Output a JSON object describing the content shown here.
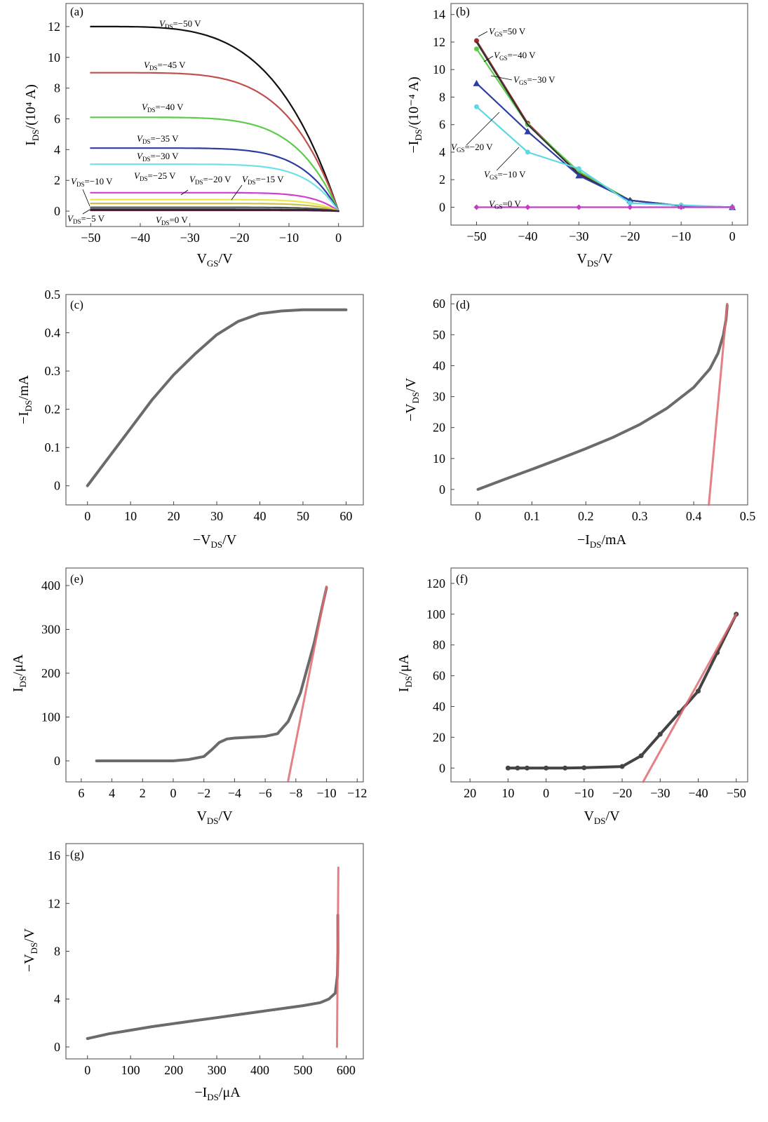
{
  "chart_data": [
    {
      "panel": "(a)",
      "type": "line",
      "xlabel": {
        "main": "V",
        "sub": "GS",
        "tail": "/V"
      },
      "ylabel": {
        "main": "I",
        "sub": "DS",
        "tail": "/(10⁴ A)"
      },
      "xlim": [
        -55,
        5
      ],
      "ylim": [
        -1,
        13.5
      ],
      "xticks": [
        -50,
        -40,
        -30,
        -20,
        -10,
        0
      ],
      "xtick_labels": [
        "−50",
        "−40",
        "−30",
        "−20",
        "−10",
        "0"
      ],
      "yticks": [
        0,
        2,
        4,
        6,
        8,
        10,
        12
      ],
      "ytick_labels": [
        "0",
        "2",
        "4",
        "6",
        "8",
        "10",
        "12"
      ],
      "series": [
        {
          "name": "VDS=−50 V",
          "color": "#111111",
          "plateau": 12.0,
          "k": 4
        },
        {
          "name": "VDS=−45 V",
          "color": "#c0504d",
          "plateau": 9.0,
          "k": 5
        },
        {
          "name": "VDS=−40 V",
          "color": "#5ccc4a",
          "plateau": 6.1,
          "k": 6
        },
        {
          "name": "VDS=−35 V",
          "color": "#2f3ca0",
          "plateau": 4.1,
          "k": 7
        },
        {
          "name": "VDS=−30 V",
          "color": "#6ee0e8",
          "plateau": 3.05,
          "k": 8
        },
        {
          "name": "VDS=−25 V",
          "color": "#d040d0",
          "plateau": 1.2,
          "k": 10
        },
        {
          "name": "VDS=−20 V",
          "color": "#ece845",
          "plateau": 0.75,
          "k": 10
        },
        {
          "name": "VDS=−15 V",
          "color": "#c8c24a",
          "plateau": 0.5,
          "k": 10
        },
        {
          "name": "VDS=−10 V",
          "color": "#555555",
          "plateau": 0.25,
          "k": 10
        },
        {
          "name": "VDS=−5 V",
          "color": "#2a2a2a",
          "plateau": 0.12,
          "k": 10
        },
        {
          "name": "VDS=0 V",
          "color": "#4a1a3a",
          "plateau": 0.05,
          "k": 10
        }
      ],
      "annotations": [
        {
          "pre": "V",
          "sub": "DS",
          "post": "=−50 V"
        },
        {
          "pre": "V",
          "sub": "DS",
          "post": "=−45 V"
        },
        {
          "pre": "V",
          "sub": "DS",
          "post": "=−40 V"
        },
        {
          "pre": "V",
          "sub": "DS",
          "post": "=−35 V"
        },
        {
          "pre": "V",
          "sub": "DS",
          "post": "=−30 V"
        },
        {
          "pre": "V",
          "sub": "DS",
          "post": "=−25 V"
        },
        {
          "pre": "V",
          "sub": "DS",
          "post": "=−20 V"
        },
        {
          "pre": "V",
          "sub": "DS",
          "post": "=−15 V"
        },
        {
          "pre": "V",
          "sub": "DS",
          "post": "=−10 V"
        },
        {
          "pre": "V",
          "sub": "DS",
          "post": "=−5 V"
        },
        {
          "pre": "V",
          "sub": "DS",
          "post": "=0 V"
        }
      ]
    },
    {
      "panel": "(b)",
      "type": "line",
      "xlabel": {
        "main": "V",
        "sub": "DS",
        "tail": "/V"
      },
      "ylabel": {
        "main": "−I",
        "sub": "DS",
        "tail": "/(10⁻⁴ A)"
      },
      "xlim": [
        -55,
        3
      ],
      "ylim": [
        -1.3,
        14.8
      ],
      "xticks": [
        -50,
        -40,
        -30,
        -20,
        -10,
        0
      ],
      "xtick_labels": [
        "−50",
        "−40",
        "−30",
        "−20",
        "−10",
        "0"
      ],
      "yticks": [
        0,
        2,
        4,
        6,
        8,
        10,
        12,
        14
      ],
      "ytick_labels": [
        "0",
        "2",
        "4",
        "6",
        "8",
        "10",
        "12",
        "14"
      ],
      "series": [
        {
          "name": "VGS=50 V",
          "color": "#a02828",
          "marker": "circle",
          "x": [
            -50,
            -40,
            -30,
            -20,
            -10,
            0
          ],
          "y": [
            12.1,
            6.1,
            2.5,
            0.5,
            0.1,
            0
          ]
        },
        {
          "name": "VGS=−40 V",
          "color": "#5ccc4a",
          "marker": "circle",
          "x": [
            -50,
            -40,
            -30,
            -20,
            -10,
            0
          ],
          "y": [
            11.5,
            6.0,
            2.6,
            0.5,
            0.1,
            0
          ]
        },
        {
          "name": "VGS=−30 V",
          "color": "#333333",
          "marker": "none",
          "x": [
            -50,
            -40,
            -30,
            -20,
            -10,
            0
          ],
          "y": [
            12.0,
            6.0,
            2.4,
            0.5,
            0.1,
            0
          ]
        },
        {
          "name": "VGS=−20 V",
          "color": "#2f3ca0",
          "marker": "triangle",
          "x": [
            -50,
            -40,
            -30,
            -20,
            -10,
            0
          ],
          "y": [
            9.0,
            5.5,
            2.3,
            0.5,
            0.1,
            0
          ]
        },
        {
          "name": "VGS=−10 V",
          "color": "#5ed8e4",
          "marker": "circle",
          "x": [
            -50,
            -40,
            -30,
            -20,
            -10,
            0
          ],
          "y": [
            7.3,
            4.0,
            2.8,
            0.3,
            0.15,
            0
          ]
        },
        {
          "name": "VGS=0 V",
          "color": "#c040c0",
          "marker": "diamond",
          "x": [
            -50,
            -40,
            -30,
            -20,
            -10,
            0
          ],
          "y": [
            0,
            0,
            0,
            0,
            0,
            0
          ]
        }
      ],
      "annotations": [
        {
          "pre": "V",
          "sub": "GS",
          "post": "=50 V"
        },
        {
          "pre": "V",
          "sub": "GS",
          "post": "=−40 V"
        },
        {
          "pre": "V",
          "sub": "GS",
          "post": "=−30 V"
        },
        {
          "pre": "V",
          "sub": "GS",
          "post": "=−20 V"
        },
        {
          "pre": "V",
          "sub": "GS",
          "post": "=−10 V"
        },
        {
          "pre": "V",
          "sub": "GS",
          "post": "=0 V"
        }
      ]
    },
    {
      "panel": "(c)",
      "type": "line",
      "xlabel": {
        "main": "−V",
        "sub": "DS",
        "tail": "/V"
      },
      "ylabel": {
        "main": "−I",
        "sub": "DS",
        "tail": "/mA"
      },
      "xlim": [
        -5,
        64
      ],
      "ylim": [
        -0.05,
        0.5
      ],
      "xticks": [
        0,
        10,
        20,
        30,
        40,
        50,
        60
      ],
      "xtick_labels": [
        "0",
        "10",
        "20",
        "30",
        "40",
        "50",
        "60"
      ],
      "yticks": [
        0,
        0.1,
        0.2,
        0.3,
        0.4,
        0.5
      ],
      "ytick_labels": [
        "0",
        "0.1",
        "0.2",
        "0.3",
        "0.4",
        "0.5"
      ],
      "series": [
        {
          "color": "#6b6b6b",
          "x": [
            0,
            5,
            10,
            15,
            20,
            25,
            30,
            35,
            40,
            45,
            50,
            55,
            60
          ],
          "y": [
            0,
            0.075,
            0.15,
            0.225,
            0.29,
            0.345,
            0.395,
            0.43,
            0.45,
            0.457,
            0.46,
            0.46,
            0.46
          ]
        }
      ]
    },
    {
      "panel": "(d)",
      "type": "line",
      "xlabel": {
        "main": "−I",
        "sub": "DS",
        "tail": "/mA"
      },
      "ylabel": {
        "main": "−V",
        "sub": "DS",
        "tail": "/V"
      },
      "xlim": [
        -0.05,
        0.5
      ],
      "ylim": [
        -5,
        63
      ],
      "xticks": [
        0,
        0.1,
        0.2,
        0.3,
        0.4,
        0.5
      ],
      "xtick_labels": [
        "0",
        "0.1",
        "0.2",
        "0.3",
        "0.4",
        "0.5"
      ],
      "yticks": [
        0,
        10,
        20,
        30,
        40,
        50,
        60
      ],
      "ytick_labels": [
        "0",
        "10",
        "20",
        "30",
        "40",
        "50",
        "60"
      ],
      "series": [
        {
          "color": "#6b6b6b",
          "x": [
            0,
            0.05,
            0.1,
            0.15,
            0.2,
            0.25,
            0.3,
            0.35,
            0.4,
            0.43,
            0.445,
            0.455,
            0.46,
            0.462
          ],
          "y": [
            0,
            3.3,
            6.5,
            9.8,
            13.2,
            16.8,
            21,
            26.2,
            33,
            39,
            44,
            50,
            55,
            59.5
          ]
        },
        {
          "color": "#e06a70",
          "x": [
            0.428,
            0.462
          ],
          "y": [
            -5,
            60
          ]
        }
      ]
    },
    {
      "panel": "(e)",
      "type": "line",
      "xlabel": {
        "main": "V",
        "sub": "DS",
        "tail": "/V"
      },
      "ylabel": {
        "main": "I",
        "sub": "DS",
        "tail": "/μA"
      },
      "xlim": [
        7,
        -12.4
      ],
      "ylim": [
        -48,
        440
      ],
      "xticks": [
        6,
        4,
        2,
        0,
        -2,
        -4,
        -6,
        -8,
        -10,
        -12
      ],
      "xtick_labels": [
        "6",
        "4",
        "2",
        "0",
        "−2",
        "−4",
        "−6",
        "−8",
        "−10",
        "−12"
      ],
      "yticks": [
        0,
        100,
        200,
        300,
        400
      ],
      "ytick_labels": [
        "0",
        "100",
        "200",
        "300",
        "400"
      ],
      "series": [
        {
          "color": "#6b6b6b",
          "x": [
            5,
            3,
            1,
            0,
            -1,
            -2,
            -2.5,
            -3,
            -3.5,
            -4,
            -5,
            -6,
            -6.8,
            -7.5,
            -8.3,
            -9.2,
            -10
          ],
          "y": [
            0,
            0,
            0,
            0,
            3,
            10,
            25,
            42,
            50,
            52,
            54,
            56,
            62,
            90,
            155,
            270,
            395
          ]
        },
        {
          "color": "#e06a70",
          "x": [
            -7.5,
            -10
          ],
          "y": [
            -45,
            398
          ]
        }
      ]
    },
    {
      "panel": "(f)",
      "type": "line",
      "xlabel": {
        "main": "V",
        "sub": "DS",
        "tail": "/V"
      },
      "ylabel": {
        "main": "I",
        "sub": "DS",
        "tail": "/μA"
      },
      "xlim": [
        25,
        -53
      ],
      "ylim": [
        -9,
        130
      ],
      "xticks": [
        20,
        10,
        0,
        -10,
        -20,
        -30,
        -40,
        -50
      ],
      "xtick_labels": [
        "20",
        "10",
        "0",
        "−10",
        "−20",
        "−30",
        "−40",
        "−50"
      ],
      "yticks": [
        0,
        20,
        40,
        60,
        80,
        100,
        120
      ],
      "ytick_labels": [
        "0",
        "20",
        "40",
        "60",
        "80",
        "100",
        "120"
      ],
      "series": [
        {
          "color": "#444444",
          "marker": "circle",
          "x": [
            10,
            7.5,
            5,
            0,
            -5,
            -10,
            -20,
            -25,
            -30,
            -35,
            -40,
            -45,
            -50
          ],
          "y": [
            0,
            0,
            0,
            0,
            0,
            0.2,
            1,
            8,
            22,
            36,
            50,
            75,
            100
          ]
        },
        {
          "color": "#e06a70",
          "x": [
            -25.5,
            -50
          ],
          "y": [
            -9,
            100
          ]
        }
      ]
    },
    {
      "panel": "(g)",
      "type": "line",
      "xlabel": {
        "main": "−I",
        "sub": "DS",
        "tail": "/μA"
      },
      "ylabel": {
        "main": "−V",
        "sub": "DS",
        "tail": "/V"
      },
      "xlim": [
        -50,
        640
      ],
      "ylim": [
        -1,
        17
      ],
      "xticks": [
        0,
        100,
        200,
        300,
        400,
        500,
        600
      ],
      "xtick_labels": [
        "0",
        "100",
        "200",
        "300",
        "400",
        "500",
        "600"
      ],
      "yticks": [
        0,
        4,
        8,
        12,
        16
      ],
      "ytick_labels": [
        "0",
        "4",
        "8",
        "12",
        "16"
      ],
      "series": [
        {
          "color": "#6b6b6b",
          "x": [
            0,
            50,
            100,
            150,
            200,
            250,
            300,
            350,
            400,
            450,
            500,
            540,
            560,
            575,
            580,
            581,
            581
          ],
          "y": [
            0.7,
            1.1,
            1.4,
            1.7,
            1.95,
            2.2,
            2.45,
            2.7,
            2.95,
            3.2,
            3.45,
            3.7,
            4.0,
            4.5,
            6,
            8,
            11
          ]
        },
        {
          "color": "#e06a70",
          "x": [
            579,
            582
          ],
          "y": [
            0,
            15
          ]
        }
      ]
    }
  ]
}
